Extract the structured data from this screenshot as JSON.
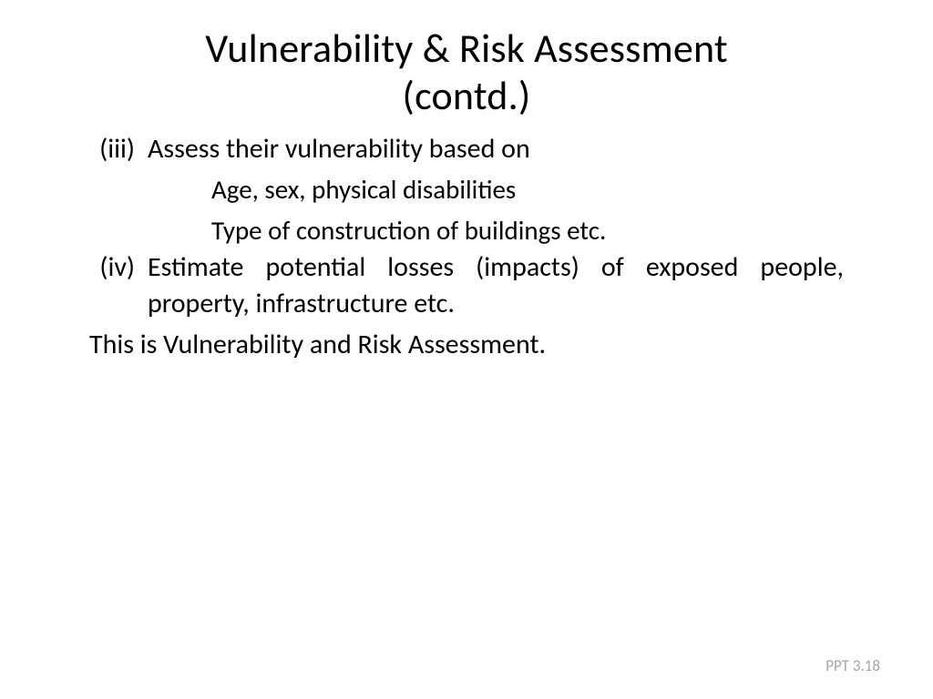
{
  "title_line1": "Vulnerability & Risk Assessment",
  "title_line2": "(contd.)",
  "items": [
    {
      "num": "(iii)",
      "text": "Assess their vulnerability based on",
      "sub": [
        "Age, sex, physical disabilities",
        "Type of construction of buildings etc."
      ],
      "justify": false
    },
    {
      "num": "(iv)",
      "text": "Estimate potential losses (impacts) of exposed people, property, infrastructure etc.",
      "sub": [],
      "justify": true
    }
  ],
  "conclusion": "This is Vulnerability and Risk Assessment.",
  "footer": "PPT 3.18",
  "colors": {
    "background": "#ffffff",
    "text": "#000000",
    "footer": "#a6a6a6"
  },
  "fontsizes": {
    "title": 44,
    "body": 30,
    "sub": 29,
    "footer": 17
  }
}
